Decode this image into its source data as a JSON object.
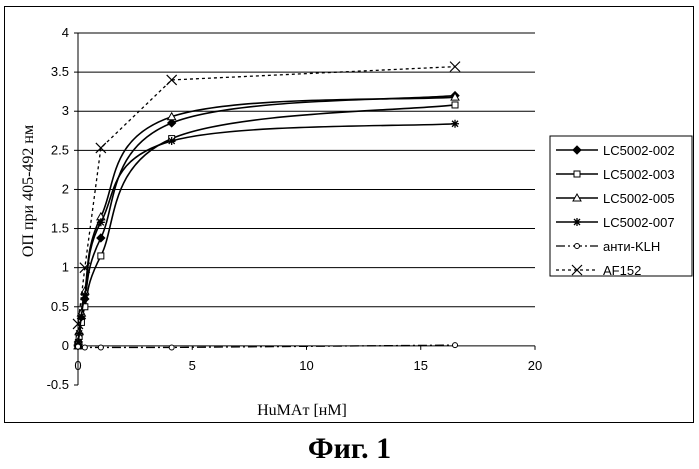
{
  "caption": "Фиг. 1",
  "chart_data": {
    "type": "line",
    "title": "",
    "xlabel": "HuMAт [нМ]",
    "ylabel": "ОП при 405-492 нм",
    "xlim": [
      0,
      20
    ],
    "ylim": [
      -0.5,
      4
    ],
    "x_ticks": [
      "0",
      "5",
      "10",
      "15",
      "20"
    ],
    "y_ticks": [
      "-0.5",
      "0",
      "0.5",
      "1",
      "1.5",
      "2",
      "2.5",
      "3",
      "3.5",
      "4"
    ],
    "grid": "horizontal",
    "legend_position": "right",
    "series": [
      {
        "name": "LC5002-002",
        "marker": "diamond",
        "line": "solid",
        "smooth": true,
        "x": [
          0,
          0.016,
          0.05,
          0.15,
          0.3,
          1.0,
          4.1,
          16.5
        ],
        "y": [
          0.0,
          0.05,
          0.15,
          0.35,
          0.6,
          1.38,
          2.85,
          3.2
        ]
      },
      {
        "name": "LC5002-003",
        "marker": "square",
        "line": "solid",
        "smooth": true,
        "x": [
          0,
          0.016,
          0.05,
          0.15,
          0.3,
          1.0,
          4.1,
          16.5
        ],
        "y": [
          0.0,
          0.04,
          0.12,
          0.3,
          0.5,
          1.15,
          2.65,
          3.08
        ]
      },
      {
        "name": "LC5002-005",
        "marker": "triangle",
        "line": "solid",
        "smooth": true,
        "x": [
          0,
          0.016,
          0.05,
          0.15,
          0.3,
          1.0,
          4.1,
          16.5
        ],
        "y": [
          0.0,
          0.06,
          0.18,
          0.42,
          0.7,
          1.65,
          2.93,
          3.18
        ]
      },
      {
        "name": "LC5002-007",
        "marker": "star",
        "line": "solid",
        "smooth": true,
        "x": [
          0,
          0.016,
          0.05,
          0.15,
          0.3,
          1.0,
          4.1,
          16.5
        ],
        "y": [
          0.0,
          0.05,
          0.16,
          0.38,
          0.65,
          1.58,
          2.62,
          2.84
        ]
      },
      {
        "name": "анти-KLH",
        "marker": "circle",
        "line": "dashdot",
        "smooth": false,
        "x": [
          0,
          0.3,
          1.0,
          4.1,
          16.5
        ],
        "y": [
          -0.01,
          -0.02,
          -0.02,
          -0.02,
          0.01
        ]
      },
      {
        "name": "AF152",
        "marker": "x",
        "line": "dotted",
        "smooth": false,
        "x": [
          0,
          0.3,
          1.0,
          4.1,
          16.5
        ],
        "y": [
          0.28,
          1.0,
          2.53,
          3.4,
          3.57
        ]
      }
    ]
  }
}
